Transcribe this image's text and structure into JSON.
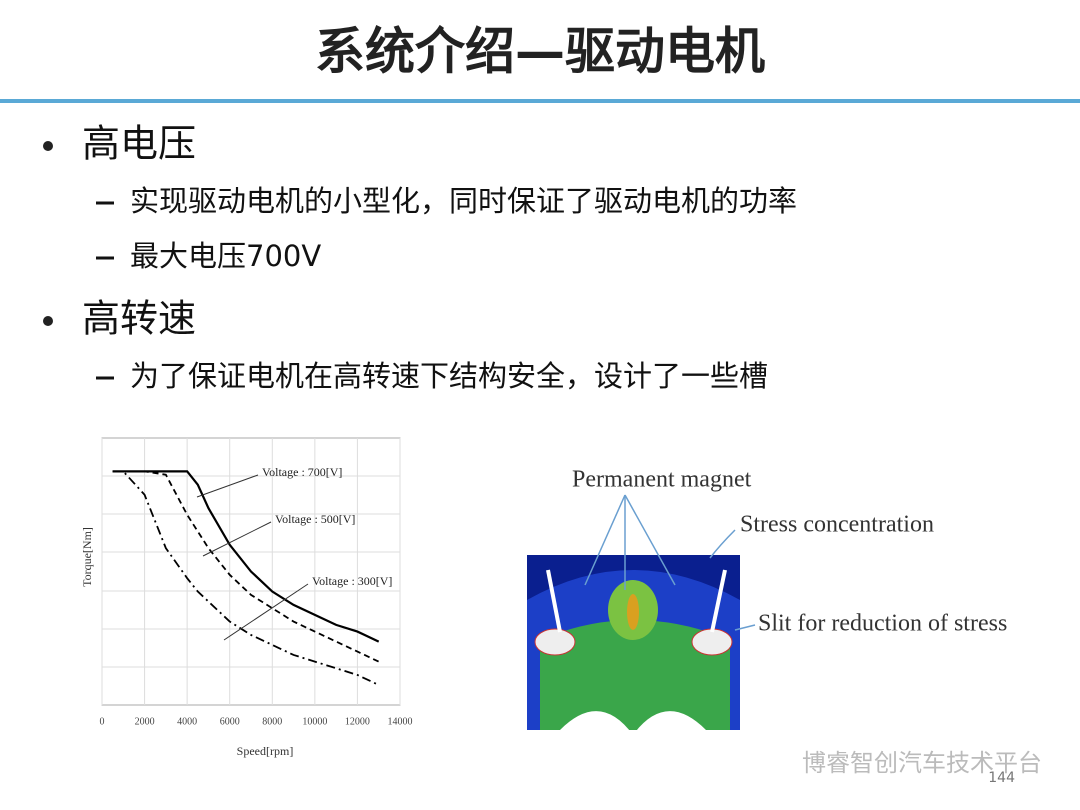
{
  "header": {
    "title": "系统介绍—驱动电机"
  },
  "bullets": [
    {
      "text": "高电压",
      "subs": [
        "实现驱动电机的小型化，同时保证了驱动电机的功率",
        "最大电压700V"
      ]
    },
    {
      "text": "高转速",
      "subs": [
        "为了保证电机在高转速下结构安全，设计了一些槽"
      ]
    }
  ],
  "chart_data": {
    "type": "line",
    "x_label": "Speed[rpm]",
    "y_label": "Torque[Nm]",
    "x": [
      500,
      1000,
      2000,
      3000,
      4000,
      4500,
      5000,
      6000,
      7000,
      8000,
      9000,
      10000,
      11000,
      12000,
      13000
    ],
    "series": [
      {
        "name": "Voltage : 700[V]",
        "color": "#000000",
        "dash": "solid",
        "values": [
          7,
          7,
          7,
          7,
          7,
          6.6,
          5.9,
          4.8,
          4.0,
          3.4,
          3.0,
          2.7,
          2.4,
          2.2,
          1.9
        ]
      },
      {
        "name": "Voltage : 500[V]",
        "color": "#000000",
        "dash": "dashed",
        "values": [
          7,
          7,
          7,
          6.9,
          5.7,
          5.2,
          4.7,
          3.9,
          3.3,
          2.9,
          2.5,
          2.2,
          1.9,
          1.6,
          1.3
        ]
      },
      {
        "name": "Voltage : 300[V]",
        "color": "#000000",
        "dash": "dashdot",
        "values": [
          7,
          7,
          6.3,
          4.7,
          3.8,
          3.4,
          3.1,
          2.5,
          2.1,
          1.8,
          1.5,
          1.3,
          1.1,
          0.9,
          0.6
        ]
      }
    ],
    "xlim": [
      0,
      14000
    ],
    "xticks": [
      0,
      2000,
      4000,
      6000,
      8000,
      10000,
      12000,
      14000
    ],
    "ylim": [
      0,
      8
    ],
    "grid": true
  },
  "figure": {
    "labels": [
      "Permanent magnet",
      "Stress concentration",
      "Slit for reduction of stress"
    ]
  },
  "footer": {
    "watermark": "博睿智创汽车技术平台",
    "page": "144"
  }
}
